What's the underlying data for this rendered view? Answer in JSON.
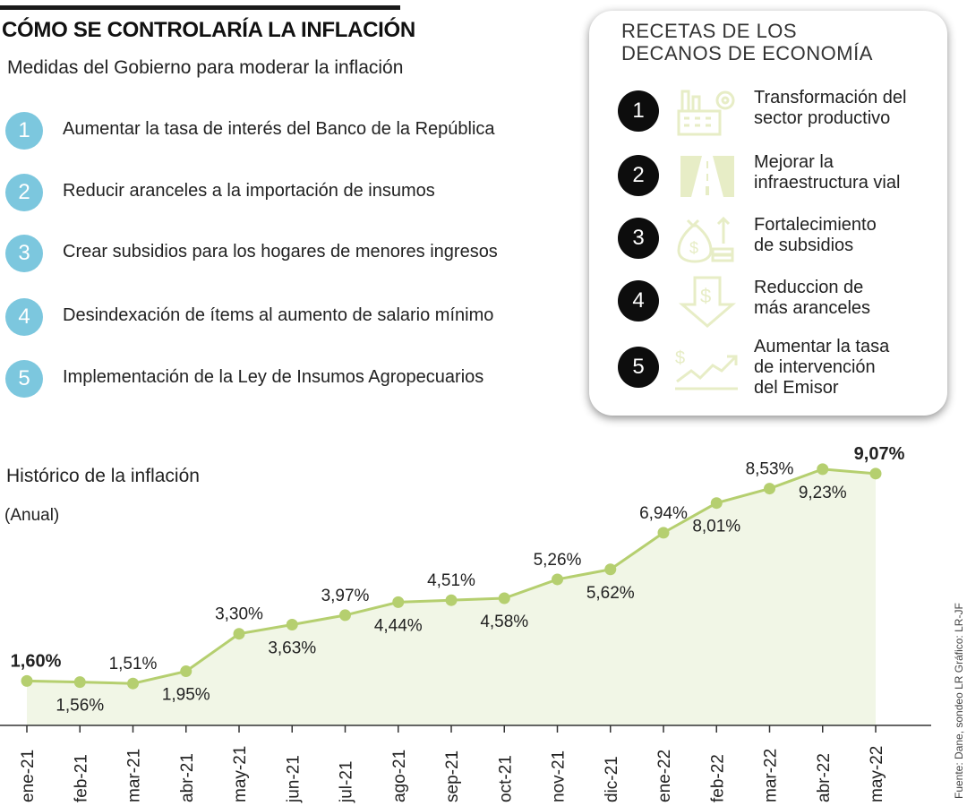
{
  "header": {
    "title": "CÓMO SE CONTROLARÍA LA INFLACIÓN",
    "subtitle": "Medidas del Gobierno para moderar la inflación"
  },
  "measures": [
    {
      "num": "1",
      "text": "Aumentar la tasa de interés del Banco de la República"
    },
    {
      "num": "2",
      "text": "Reducir aranceles a la importación de insumos"
    },
    {
      "num": "3",
      "text": "Crear subsidios para los hogares de menores ingresos"
    },
    {
      "num": "4",
      "text": "Desindexación de ítems al aumento de salario mínimo"
    },
    {
      "num": "5",
      "text": "Implementación de la Ley de Insumos Agropecuarios"
    }
  ],
  "recipes": {
    "title_line1": "RECETAS DE LOS",
    "title_line2": "DECANOS DE ECONOMÍA",
    "items": [
      {
        "num": "1",
        "icon": "factory-gear-icon",
        "text": "Transformación del\nsector productivo"
      },
      {
        "num": "2",
        "icon": "road-icon",
        "text": "Mejorar la\ninfraestructura vial"
      },
      {
        "num": "3",
        "icon": "money-bag-coins-icon",
        "text": "Fortalecimiento\nde subsidios"
      },
      {
        "num": "4",
        "icon": "dollar-down-arrow-icon",
        "text": "Reduccion de\nmás aranceles"
      },
      {
        "num": "5",
        "icon": "dollar-trend-up-icon",
        "text": "Aumentar la tasa\nde intervención\ndel Emisor"
      }
    ]
  },
  "colors": {
    "measure_circle": "#7cc7de",
    "line": "#b5cf6f",
    "area": "#f1f6e6",
    "icon": "#e7edc6",
    "recipe_circle": "#0d0d0d"
  },
  "source": "Fuente: Dane, sondeo LR  Gráfico: LR-JF",
  "chart_data": {
    "type": "area",
    "title": "Histórico de la inflación",
    "unit": "(Anual)",
    "categories": [
      "ene-21",
      "feb-21",
      "mar-21",
      "abr-21",
      "may-21",
      "jun-21",
      "jul-21",
      "ago-21",
      "sep-21",
      "oct-21",
      "nov-21",
      "dic-21",
      "ene-22",
      "feb-22",
      "mar-22",
      "abr-22",
      "may-22"
    ],
    "values": [
      1.6,
      1.56,
      1.51,
      1.95,
      3.3,
      3.63,
      3.97,
      4.44,
      4.51,
      4.58,
      5.26,
      5.62,
      6.94,
      8.01,
      8.53,
      9.23,
      9.07
    ],
    "labels": [
      "1,60%",
      "1,56%",
      "1,51%",
      "1,95%",
      "3,30%",
      "3,63%",
      "3,97%",
      "4,44%",
      "4,51%",
      "4,58%",
      "5,26%",
      "5,62%",
      "6,94%",
      "8,01%",
      "8,53%",
      "9,23%",
      "9,07%"
    ],
    "label_positions": [
      "above",
      "below",
      "above",
      "below",
      "above",
      "below",
      "above",
      "below",
      "above",
      "below",
      "above",
      "below",
      "above",
      "below",
      "above",
      "below",
      "above"
    ],
    "highlighted": [
      "ene-21",
      "may-22"
    ],
    "ylim": [
      0,
      10
    ],
    "grid": false,
    "legend": false
  }
}
